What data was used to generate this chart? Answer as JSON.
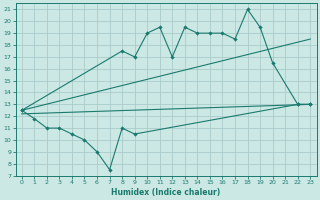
{
  "xlabel": "Humidex (Indice chaleur)",
  "color": "#1a7a6e",
  "bg_color": "#cce8e4",
  "grid_color": "#aaccca",
  "ylim": [
    7,
    21.5
  ],
  "xlim": [
    -0.5,
    23.5
  ],
  "yticks": [
    7,
    8,
    9,
    10,
    11,
    12,
    13,
    14,
    15,
    16,
    17,
    18,
    19,
    20,
    21
  ],
  "xticks": [
    0,
    1,
    2,
    3,
    4,
    5,
    6,
    7,
    8,
    9,
    10,
    11,
    12,
    13,
    14,
    15,
    16,
    17,
    18,
    19,
    20,
    21,
    22,
    23
  ],
  "line1_x": [
    0,
    1,
    2,
    3,
    4,
    5,
    6,
    7,
    8,
    9,
    22,
    23
  ],
  "line1_y": [
    12.5,
    11.8,
    11.0,
    11.0,
    10.5,
    10.0,
    9.0,
    7.5,
    11.0,
    10.5,
    13.0,
    13.0
  ],
  "line2_x": [
    0,
    8,
    9,
    10,
    11,
    12,
    13,
    14,
    15,
    16,
    17,
    18,
    19,
    20,
    22,
    23
  ],
  "line2_y": [
    12.5,
    17.5,
    17.0,
    19.0,
    19.5,
    17.0,
    19.5,
    19.0,
    19.0,
    19.0,
    18.5,
    21.0,
    19.5,
    16.5,
    13.0,
    13.0
  ],
  "line3_x": [
    0,
    23
  ],
  "line3_y": [
    12.5,
    18.5
  ],
  "line4_x": [
    0,
    23
  ],
  "line4_y": [
    12.2,
    13.0
  ],
  "marker_size": 2.2,
  "lw": 0.8
}
